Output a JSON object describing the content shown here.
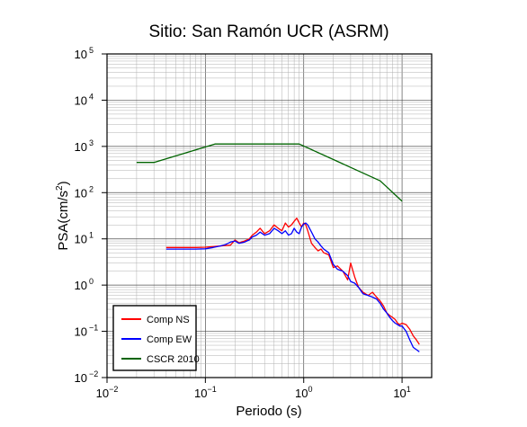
{
  "chart_data": {
    "type": "line",
    "title": "Sitio: San Ramón UCR (ASRM)",
    "xlabel": "Periodo (s)",
    "ylabel": {
      "text": "PSA(cm/s",
      "sup": "2",
      "close": ")"
    },
    "x_scale": "log",
    "y_scale": "log",
    "xlim": [
      0.01,
      20
    ],
    "ylim": [
      0.01,
      100000
    ],
    "grid": true,
    "legend_position": "bottom-left",
    "x_ticks": [
      {
        "base": "10",
        "exp": "−2",
        "value": 0.01
      },
      {
        "base": "10",
        "exp": "−1",
        "value": 0.1
      },
      {
        "base": "10",
        "exp": "0",
        "value": 1
      },
      {
        "base": "10",
        "exp": "1",
        "value": 10
      }
    ],
    "y_ticks": [
      {
        "base": "10",
        "exp": "−2",
        "value": 0.01
      },
      {
        "base": "10",
        "exp": "−1",
        "value": 0.1
      },
      {
        "base": "10",
        "exp": "0",
        "value": 1
      },
      {
        "base": "10",
        "exp": "1",
        "value": 10
      },
      {
        "base": "10",
        "exp": "2",
        "value": 100
      },
      {
        "base": "10",
        "exp": "3",
        "value": 1000
      },
      {
        "base": "10",
        "exp": "4",
        "value": 10000
      },
      {
        "base": "10",
        "exp": "5",
        "value": 100000
      }
    ],
    "series": [
      {
        "name": "Comp NS",
        "color": "#ff0000",
        "x": [
          0.04,
          0.06,
          0.08,
          0.1,
          0.12,
          0.14,
          0.16,
          0.18,
          0.2,
          0.22,
          0.25,
          0.28,
          0.3,
          0.33,
          0.36,
          0.4,
          0.45,
          0.5,
          0.55,
          0.6,
          0.65,
          0.7,
          0.75,
          0.8,
          0.85,
          0.9,
          0.95,
          1.0,
          1.05,
          1.1,
          1.2,
          1.3,
          1.4,
          1.5,
          1.6,
          1.8,
          2.0,
          2.2,
          2.5,
          2.8,
          3.0,
          3.3,
          3.6,
          4.0,
          4.5,
          5.0,
          5.5,
          6.0,
          6.5,
          7.0,
          7.5,
          8.0,
          8.5,
          9.0,
          9.5,
          10,
          11,
          12,
          13,
          14,
          15
        ],
        "y": [
          6.5,
          6.5,
          6.5,
          6.6,
          6.8,
          7.0,
          7.2,
          7.3,
          9.5,
          8.2,
          9.0,
          10.0,
          12,
          14,
          17,
          13,
          15,
          20,
          17,
          15,
          22,
          18,
          20,
          24,
          28,
          22,
          18,
          22,
          20,
          15,
          8,
          6.5,
          5.5,
          6.0,
          5.0,
          4.5,
          2.4,
          2.6,
          2.0,
          1.3,
          3.0,
          1.5,
          0.9,
          0.7,
          0.6,
          0.7,
          0.55,
          0.45,
          0.35,
          0.25,
          0.22,
          0.2,
          0.18,
          0.15,
          0.14,
          0.15,
          0.14,
          0.11,
          0.08,
          0.065,
          0.052
        ]
      },
      {
        "name": "Comp EW",
        "color": "#0000ff",
        "x": [
          0.04,
          0.06,
          0.08,
          0.1,
          0.12,
          0.14,
          0.16,
          0.18,
          0.2,
          0.22,
          0.25,
          0.28,
          0.3,
          0.33,
          0.36,
          0.4,
          0.45,
          0.5,
          0.55,
          0.6,
          0.65,
          0.7,
          0.75,
          0.8,
          0.85,
          0.9,
          0.95,
          1.0,
          1.05,
          1.1,
          1.2,
          1.3,
          1.4,
          1.5,
          1.6,
          1.8,
          2.0,
          2.2,
          2.5,
          2.8,
          3.0,
          3.3,
          3.6,
          4.0,
          4.5,
          5.0,
          5.5,
          6.0,
          6.5,
          7.0,
          7.5,
          8.0,
          8.5,
          9.0,
          9.5,
          10,
          11,
          12,
          13,
          14,
          15
        ],
        "y": [
          6.0,
          6.0,
          6.0,
          6.1,
          6.5,
          7.0,
          7.5,
          8.5,
          9.0,
          8.0,
          8.5,
          9.5,
          11,
          12,
          14,
          12,
          13,
          17,
          15,
          13,
          15,
          12,
          13,
          17,
          14,
          13,
          18,
          21,
          22,
          20,
          14,
          10,
          8.5,
          7.0,
          6.0,
          5.0,
          2.8,
          2.2,
          2.0,
          1.6,
          1.2,
          1.1,
          0.9,
          0.65,
          0.6,
          0.55,
          0.5,
          0.4,
          0.3,
          0.25,
          0.2,
          0.17,
          0.15,
          0.14,
          0.13,
          0.13,
          0.1,
          0.065,
          0.045,
          0.04,
          0.036
        ]
      },
      {
        "name": "CSCR 2010",
        "color": "#006400",
        "x": [
          0.02,
          0.03,
          0.125,
          0.9,
          6.0,
          10.0
        ],
        "y": [
          450,
          450,
          1125,
          1125,
          180,
          65
        ]
      }
    ]
  }
}
